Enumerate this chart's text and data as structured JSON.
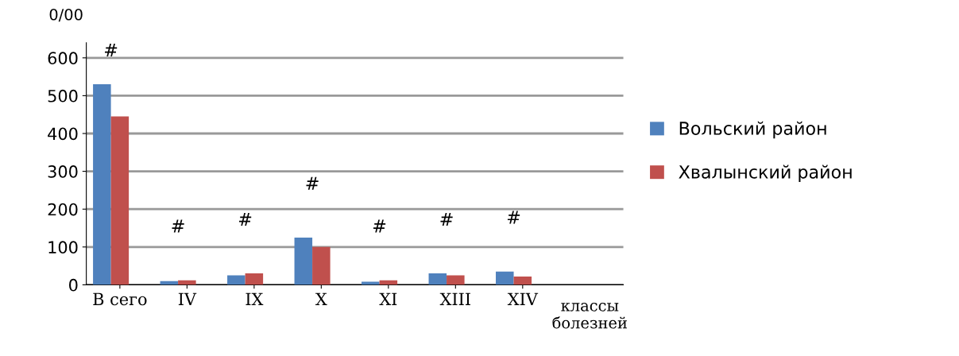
{
  "chart_data": {
    "type": "bar",
    "ylabel": "0/00",
    "xlabel": "классы\nболезней",
    "categories": [
      "В сего",
      "IV",
      "IX",
      "X",
      "XI",
      "XIII",
      "XIV"
    ],
    "series": [
      {
        "name": "Вольский район",
        "color": "#4f81bd",
        "values": [
          530,
          10,
          25,
          125,
          8,
          30,
          35
        ]
      },
      {
        "name": "Хвалынский район",
        "color": "#c0504d",
        "values": [
          445,
          12,
          30,
          100,
          12,
          25,
          22
        ]
      }
    ],
    "ylim": [
      0,
      640
    ],
    "yticks": [
      0,
      100,
      200,
      300,
      400,
      500,
      600
    ],
    "grid": "y",
    "legend": "right",
    "annotations": [
      "#",
      "#",
      "#",
      "#",
      "#",
      "#",
      "#"
    ]
  }
}
